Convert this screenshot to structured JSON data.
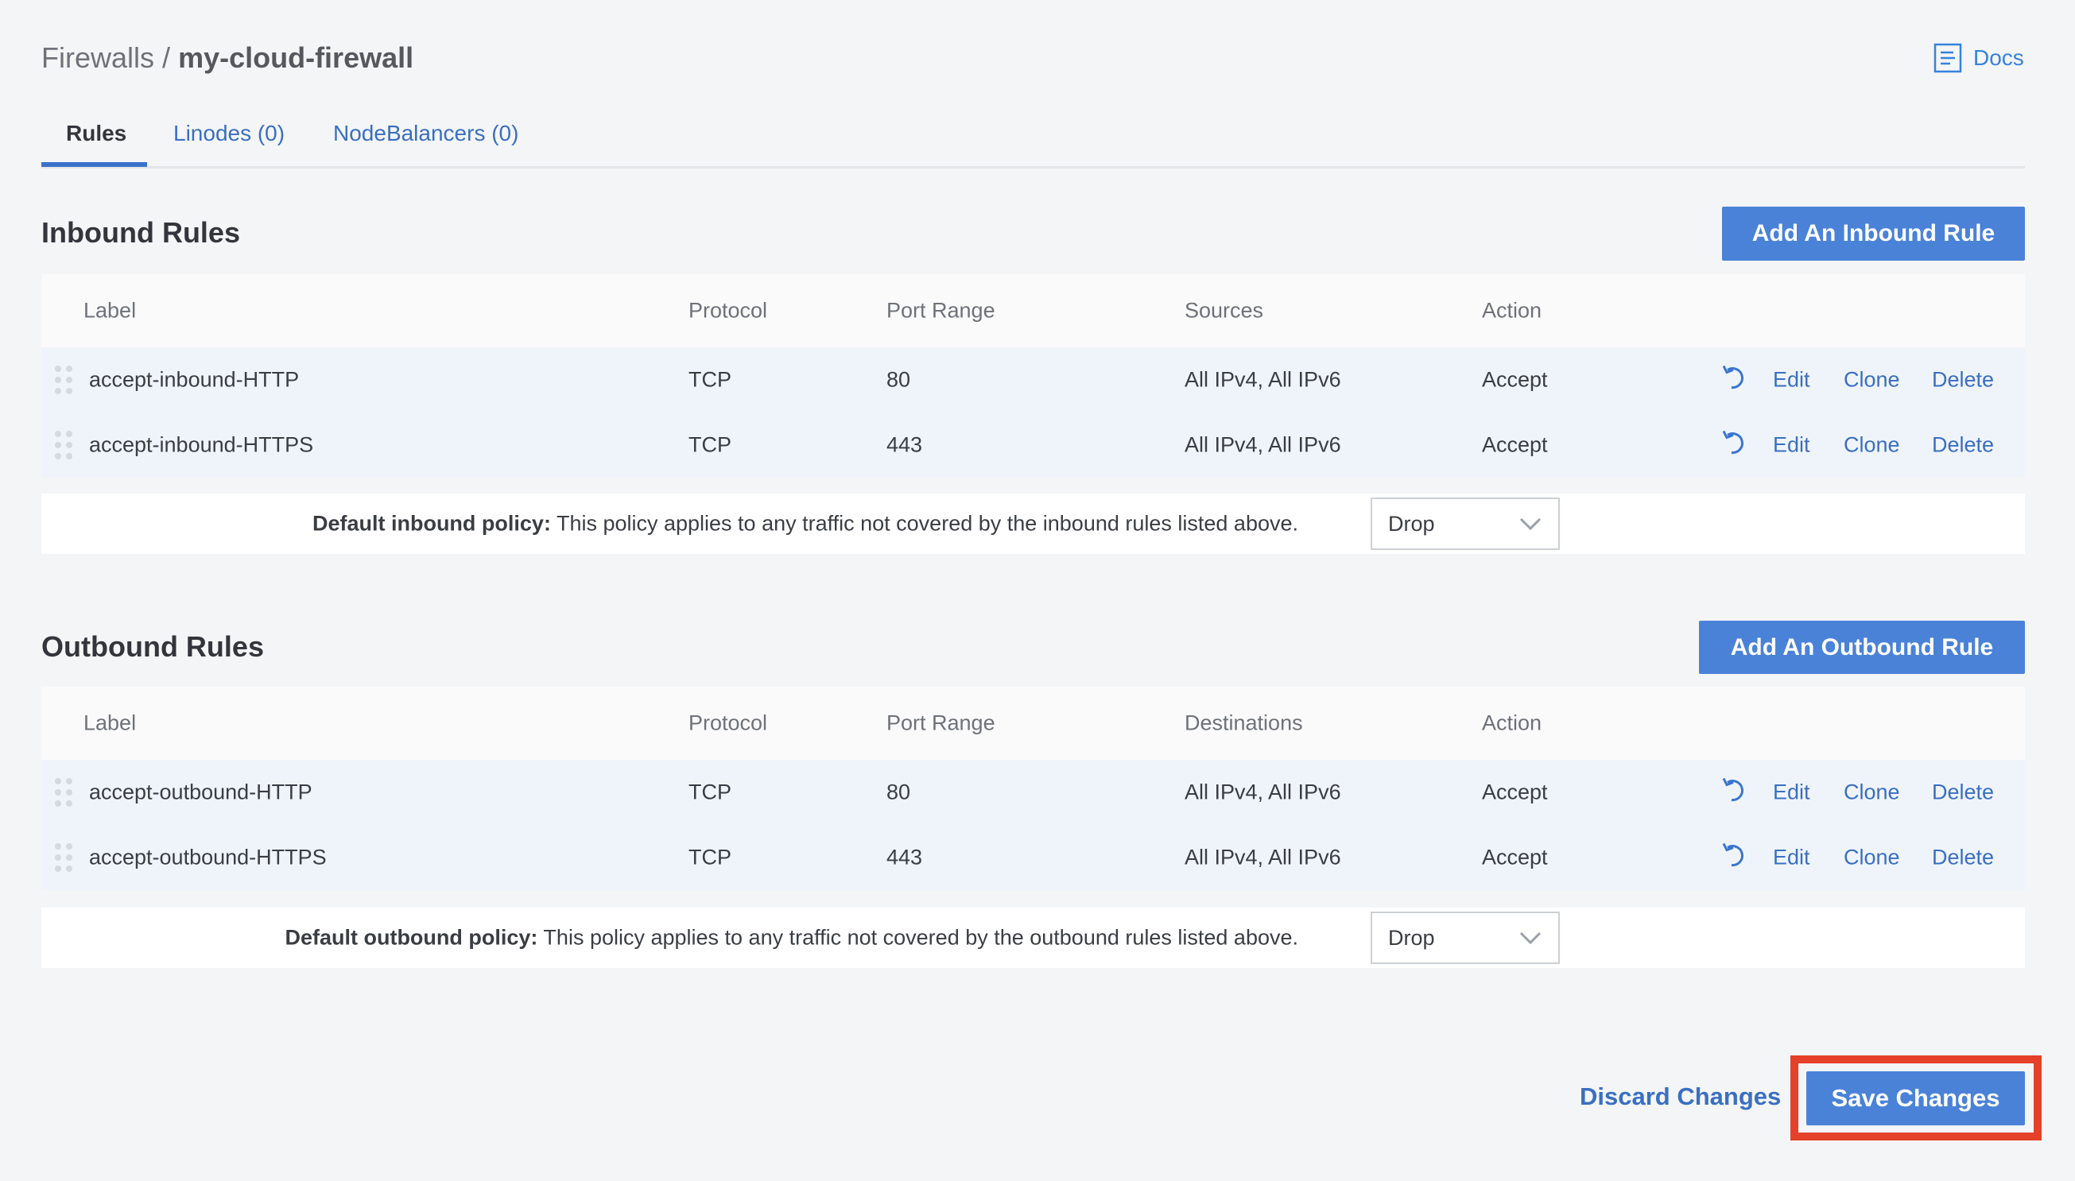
{
  "breadcrumb": {
    "parent": "Firewalls",
    "separator": "/",
    "current": "my-cloud-firewall"
  },
  "docs": {
    "label": "Docs",
    "icon": "docs-icon"
  },
  "tabs": [
    {
      "label": "Rules",
      "active": true
    },
    {
      "label": "Linodes (0)",
      "active": false
    },
    {
      "label": "NodeBalancers (0)",
      "active": false
    }
  ],
  "colors": {
    "accent": "#4a82d8",
    "link": "#3a6fc1",
    "highlight": "#e5402a",
    "row_bg": "#eff4fb"
  },
  "inbound": {
    "title": "Inbound Rules",
    "add_button": "Add An Inbound Rule",
    "columns": [
      "Label",
      "Protocol",
      "Port Range",
      "Sources",
      "Action"
    ],
    "rows": [
      {
        "label": "accept-inbound-HTTP",
        "protocol": "TCP",
        "ports": "80",
        "addresses": "All IPv4, All IPv6",
        "action": "Accept"
      },
      {
        "label": "accept-inbound-HTTPS",
        "protocol": "TCP",
        "ports": "443",
        "addresses": "All IPv4, All IPv6",
        "action": "Accept"
      }
    ],
    "policy_label": "Default inbound policy:",
    "policy_text": " This policy applies to any traffic not covered by the inbound rules listed above.",
    "policy_value": "Drop"
  },
  "outbound": {
    "title": "Outbound Rules",
    "add_button": "Add An Outbound Rule",
    "columns": [
      "Label",
      "Protocol",
      "Port Range",
      "Destinations",
      "Action"
    ],
    "rows": [
      {
        "label": "accept-outbound-HTTP",
        "protocol": "TCP",
        "ports": "80",
        "addresses": "All IPv4, All IPv6",
        "action": "Accept"
      },
      {
        "label": "accept-outbound-HTTPS",
        "protocol": "TCP",
        "ports": "443",
        "addresses": "All IPv4, All IPv6",
        "action": "Accept"
      }
    ],
    "policy_label": "Default outbound policy:",
    "policy_text": " This policy applies to any traffic not covered by the outbound rules listed above.",
    "policy_value": "Drop"
  },
  "row_actions": {
    "undo_icon": "undo-icon",
    "edit": "Edit",
    "clone": "Clone",
    "delete": "Delete"
  },
  "footer": {
    "discard": "Discard Changes",
    "save": "Save Changes"
  }
}
